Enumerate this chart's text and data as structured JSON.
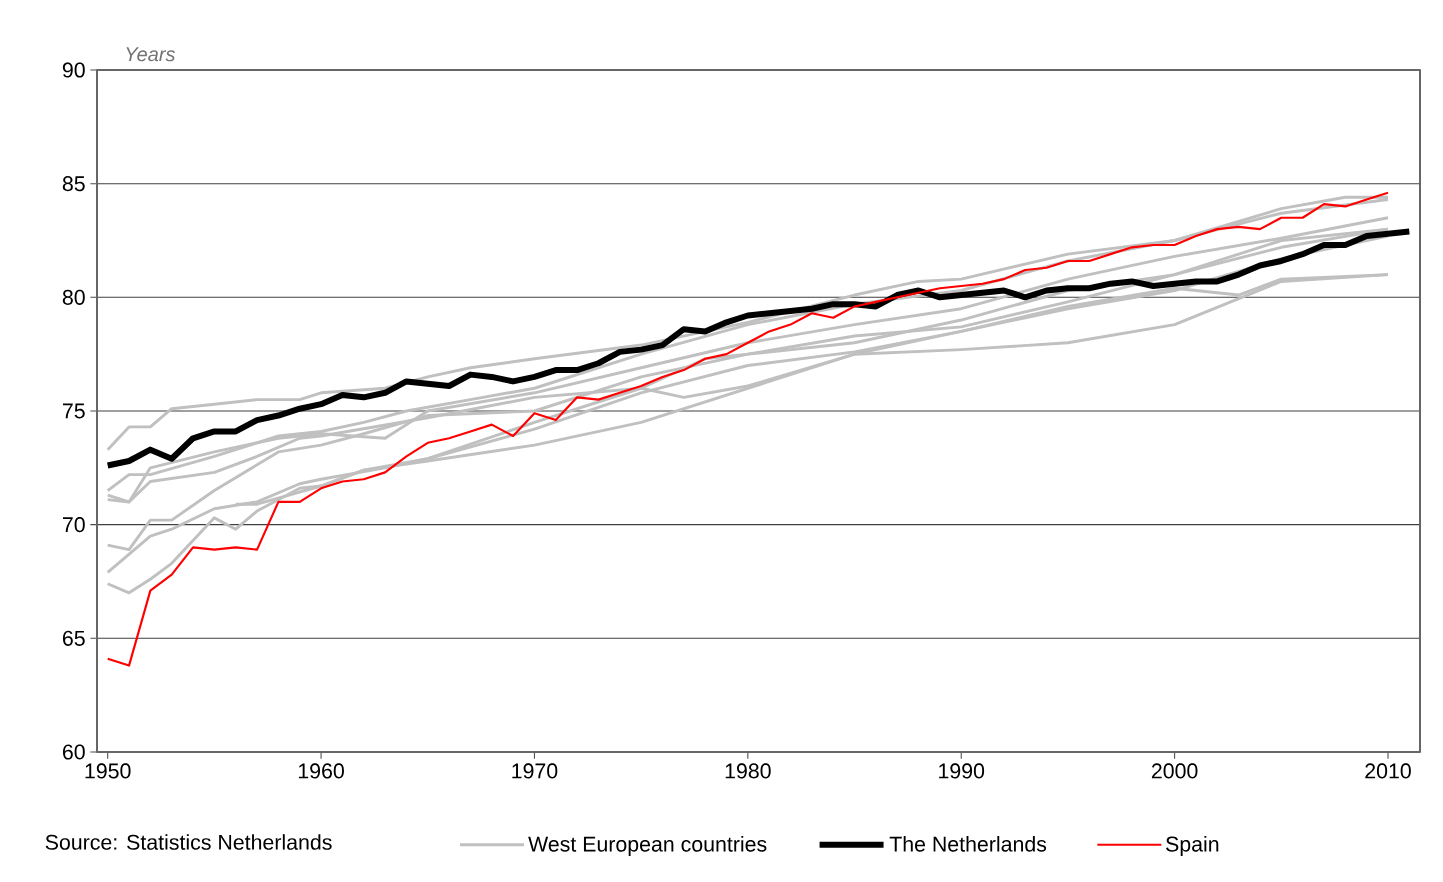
{
  "chart_data": {
    "type": "line",
    "ylabel": "Years",
    "xlim": [
      1949.5,
      2011.5
    ],
    "xticks": [
      1950,
      1960,
      1970,
      1980,
      1990,
      2000,
      2010
    ],
    "ylim": [
      60,
      90
    ],
    "yticks": [
      60,
      65,
      70,
      75,
      80,
      85,
      90
    ],
    "grid": "y",
    "legend": "bottom",
    "marker": "none",
    "line_style": "solid",
    "annotations": [
      "Source: Statistics Netherlands"
    ],
    "series": [
      {
        "name": "West European countries",
        "color": "#c0c0c0",
        "x": [
          1950,
          1951,
          1952,
          1953,
          1955,
          1957,
          1959,
          1960,
          1963,
          1965,
          1967,
          1970,
          1975,
          1980,
          1985,
          1988,
          1990,
          1995,
          2000,
          2005,
          2008,
          2010
        ],
        "values": [
          73.3,
          74.3,
          74.3,
          75.1,
          75.3,
          75.5,
          75.5,
          75.8,
          76.0,
          76.5,
          76.9,
          77.3,
          77.9,
          78.9,
          80.1,
          80.7,
          80.8,
          81.9,
          82.5,
          83.9,
          84.4,
          84.4
        ]
      },
      {
        "color": "#c0c0c0",
        "x": [
          1950,
          1951,
          1952,
          1955,
          1958,
          1960,
          1962,
          1964,
          1967,
          1970,
          1975,
          1980,
          1985,
          1990,
          1995,
          2000,
          2005,
          2010
        ],
        "values": [
          71.5,
          72.2,
          72.2,
          73.0,
          73.9,
          74.1,
          74.5,
          75.0,
          75.5,
          76.0,
          77.5,
          78.8,
          79.7,
          80.3,
          81.6,
          82.5,
          83.7,
          84.3
        ]
      },
      {
        "color": "#c0c0c0",
        "x": [
          1950,
          1951,
          1952,
          1955,
          1958,
          1960,
          1963,
          1965,
          1970,
          1975,
          1980,
          1985,
          1990,
          1995,
          2000,
          2005,
          2010
        ],
        "values": [
          71.3,
          71.0,
          72.5,
          73.2,
          73.8,
          74.0,
          73.8,
          75.0,
          75.8,
          76.9,
          78.0,
          78.8,
          79.5,
          80.8,
          81.8,
          82.6,
          83.5
        ]
      },
      {
        "color": "#c0c0c0",
        "x": [
          1950,
          1951,
          1952,
          1955,
          1957,
          1959,
          1960,
          1965,
          1970,
          1975,
          1978,
          1980,
          1985,
          1990,
          1995,
          2000,
          2005,
          2010
        ],
        "values": [
          71.1,
          71.0,
          71.9,
          72.3,
          73.0,
          73.8,
          73.9,
          74.7,
          75.6,
          76.0,
          77.3,
          77.5,
          78.3,
          78.7,
          79.8,
          81.0,
          82.2,
          83.0
        ]
      },
      {
        "color": "#c0c0c0",
        "x": [
          1950,
          1951,
          1952,
          1953,
          1955,
          1958,
          1960,
          1962,
          1965,
          1970,
          1975,
          1980,
          1985,
          1990,
          1995,
          2000,
          2005,
          2010
        ],
        "values": [
          69.1,
          68.9,
          70.2,
          70.2,
          71.5,
          73.2,
          73.5,
          74.0,
          74.8,
          75.0,
          76.5,
          77.5,
          78.0,
          79.0,
          80.3,
          81.0,
          82.5,
          83.0
        ]
      },
      {
        "color": "#c0c0c0",
        "x": [
          1950,
          1952,
          1953,
          1955,
          1957,
          1959,
          1960,
          1963,
          1965,
          1970,
          1975,
          1980,
          1985,
          1990,
          1995,
          2000,
          2005,
          2010
        ],
        "values": [
          67.9,
          69.5,
          69.8,
          70.7,
          71.0,
          71.8,
          72.0,
          72.5,
          72.9,
          74.2,
          75.8,
          77.0,
          77.6,
          78.5,
          79.5,
          80.3,
          81.7,
          82.7
        ]
      },
      {
        "color": "#c0c0c0",
        "x": [
          1950,
          1951,
          1952,
          1953,
          1955,
          1956,
          1957,
          1959,
          1960,
          1962,
          1965,
          1970,
          1975,
          1980,
          1985,
          1990,
          1995,
          2000,
          2005,
          2010
        ],
        "values": [
          67.4,
          67.0,
          67.6,
          68.3,
          70.3,
          69.8,
          70.6,
          71.6,
          71.7,
          72.4,
          72.8,
          73.5,
          74.5,
          76.0,
          77.5,
          77.7,
          78.0,
          78.8,
          80.7,
          81.0
        ]
      },
      {
        "color": "#c0c0c0",
        "x": [
          1956,
          1957,
          1960,
          1962,
          1965,
          1970,
          1975,
          1977,
          1980,
          1985,
          1990,
          1995,
          2000,
          2003,
          2005,
          2010
        ],
        "values": [
          70.9,
          70.9,
          71.7,
          72.4,
          72.9,
          74.5,
          76.0,
          75.6,
          76.1,
          77.5,
          78.5,
          79.6,
          80.4,
          80.1,
          80.8,
          81.0
        ]
      },
      {
        "name": "The Netherlands",
        "color": "#000000",
        "x": [
          1950,
          1951,
          1952,
          1953,
          1954,
          1955,
          1956,
          1957,
          1958,
          1959,
          1960,
          1961,
          1962,
          1963,
          1964,
          1965,
          1966,
          1967,
          1968,
          1969,
          1970,
          1971,
          1972,
          1973,
          1974,
          1975,
          1976,
          1977,
          1978,
          1979,
          1980,
          1981,
          1982,
          1983,
          1984,
          1985,
          1986,
          1987,
          1988,
          1989,
          1990,
          1991,
          1992,
          1993,
          1994,
          1995,
          1996,
          1997,
          1998,
          1999,
          2000,
          2001,
          2002,
          2003,
          2004,
          2005,
          2006,
          2007,
          2008,
          2009,
          2010,
          2011
        ],
        "values": [
          72.6,
          72.8,
          73.3,
          72.9,
          73.8,
          74.1,
          74.1,
          74.6,
          74.8,
          75.1,
          75.3,
          75.7,
          75.6,
          75.8,
          76.3,
          76.2,
          76.1,
          76.6,
          76.5,
          76.3,
          76.5,
          76.8,
          76.8,
          77.1,
          77.6,
          77.7,
          77.9,
          78.6,
          78.5,
          78.9,
          79.2,
          79.3,
          79.4,
          79.5,
          79.7,
          79.7,
          79.6,
          80.1,
          80.3,
          80.0,
          80.1,
          80.2,
          80.3,
          80.0,
          80.3,
          80.4,
          80.4,
          80.6,
          80.7,
          80.5,
          80.6,
          80.7,
          80.7,
          81.0,
          81.4,
          81.6,
          81.9,
          82.3,
          82.3,
          82.7,
          82.8,
          82.9
        ]
      },
      {
        "name": "Spain",
        "color": "#ff0000",
        "x": [
          1950,
          1951,
          1952,
          1953,
          1954,
          1955,
          1956,
          1957,
          1958,
          1959,
          1960,
          1961,
          1962,
          1963,
          1964,
          1965,
          1966,
          1967,
          1968,
          1969,
          1970,
          1971,
          1972,
          1973,
          1974,
          1975,
          1976,
          1977,
          1978,
          1979,
          1980,
          1981,
          1982,
          1983,
          1984,
          1985,
          1986,
          1987,
          1988,
          1989,
          1990,
          1991,
          1992,
          1993,
          1994,
          1995,
          1996,
          1997,
          1998,
          1999,
          2000,
          2001,
          2002,
          2003,
          2004,
          2005,
          2006,
          2007,
          2008,
          2009,
          2010
        ],
        "values": [
          64.1,
          63.8,
          67.1,
          67.8,
          69.0,
          68.9,
          69.0,
          68.9,
          71.0,
          71.0,
          71.6,
          71.9,
          72.0,
          72.3,
          73.0,
          73.6,
          73.8,
          74.1,
          74.4,
          73.9,
          74.9,
          74.6,
          75.6,
          75.5,
          75.8,
          76.1,
          76.5,
          76.8,
          77.3,
          77.5,
          78.0,
          78.5,
          78.8,
          79.3,
          79.1,
          79.6,
          79.8,
          80.0,
          80.2,
          80.4,
          80.5,
          80.6,
          80.8,
          81.2,
          81.3,
          81.6,
          81.6,
          81.9,
          82.2,
          82.3,
          82.3,
          82.7,
          83.0,
          83.1,
          83.0,
          83.5,
          83.5,
          84.1,
          84.0,
          84.3,
          84.6
        ]
      }
    ]
  }
}
